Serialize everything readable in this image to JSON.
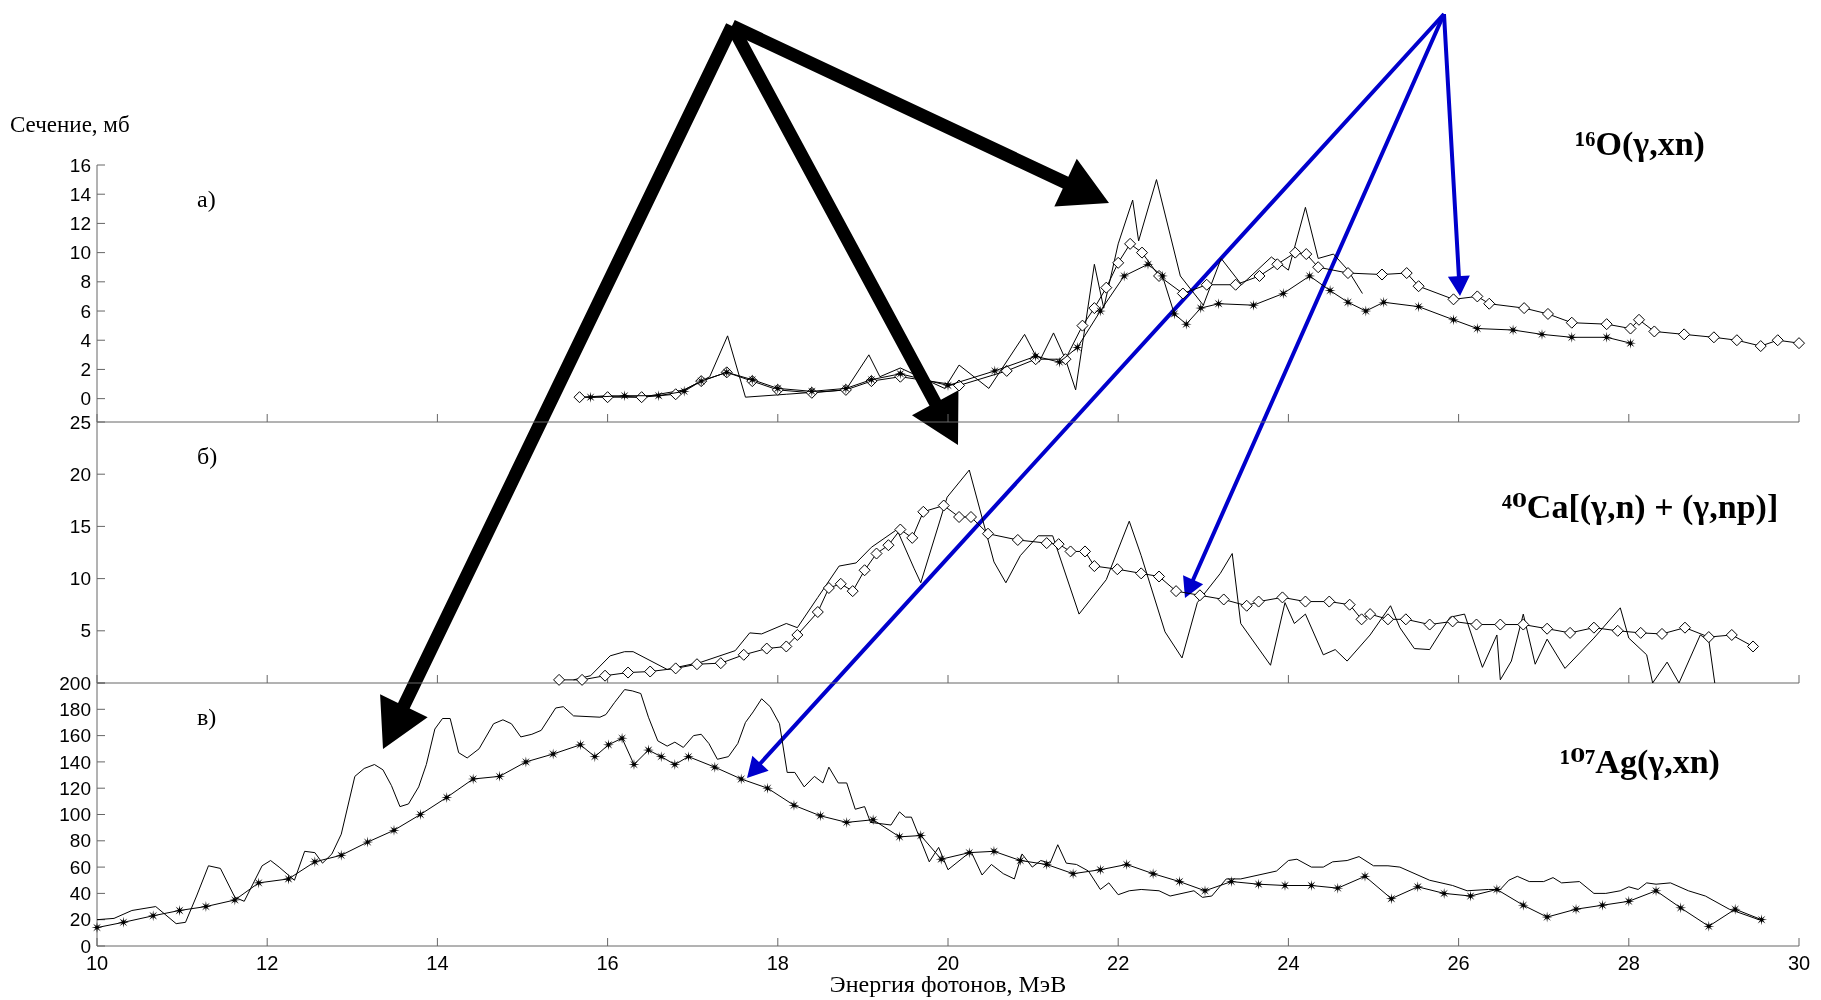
{
  "chart_data": [
    {
      "type": "line",
      "title": "¹⁶O(γ,xn)",
      "ylabel": "Сечение, мб",
      "annotations": [
        "а)"
      ],
      "xlim": [
        10,
        30
      ],
      "xticks": [
        10,
        12,
        14,
        16,
        18,
        20,
        22,
        24,
        26,
        28,
        30
      ],
      "ylim": [
        -1.6,
        16
      ],
      "yticks": [
        0,
        2,
        4,
        6,
        8,
        10,
        12,
        14,
        16
      ],
      "tick_labels": "y",
      "line_style": "solid",
      "series": [
        {
          "color": "#000000",
          "marker": "none",
          "x": [
            15.7,
            16.0,
            16.4,
            16.9,
            17.2,
            17.41,
            17.62,
            18.1,
            18.8,
            19.07,
            19.2,
            19.44,
            19.96,
            20.13,
            20.48,
            20.9,
            21.07,
            21.24,
            21.38,
            21.5,
            21.72,
            21.83,
            22.0,
            22.17,
            22.24,
            22.45,
            22.73,
            23.0,
            23.21,
            23.45,
            23.8,
            24.0,
            24.2,
            24.35,
            24.53,
            24.7,
            24.87
          ],
          "values": [
            0.1,
            0.2,
            0.1,
            0.6,
            1.5,
            4.3,
            0.1,
            0.3,
            0.6,
            3.0,
            1.5,
            2.1,
            0.7,
            2.3,
            0.7,
            4.4,
            2.5,
            4.5,
            2.7,
            0.6,
            9.2,
            6.2,
            10.6,
            13.6,
            10.8,
            15.0,
            8.4,
            6.4,
            9.6,
            7.8,
            9.7,
            8.8,
            13.1,
            9.6,
            9.9,
            8.8,
            7.2
          ]
        },
        {
          "color": "#000000",
          "marker": "diamond",
          "x": [
            15.67,
            16.0,
            16.4,
            16.8,
            17.1,
            17.4,
            17.7,
            18.0,
            18.4,
            18.8,
            19.1,
            19.44,
            20.13,
            20.69,
            21.03,
            21.38,
            21.58,
            21.72,
            21.86,
            22.0,
            22.14,
            22.28,
            22.48,
            22.76,
            23.04,
            23.38,
            23.66,
            23.87,
            24.08,
            24.21,
            24.35,
            24.7,
            25.1,
            25.39,
            25.53,
            25.94,
            26.22,
            26.36,
            26.77,
            27.05,
            27.33,
            27.74,
            28.02,
            28.12,
            28.3,
            28.65,
            29.0,
            29.27,
            29.55,
            29.75,
            30.0
          ],
          "values": [
            0.1,
            0.1,
            0.1,
            0.3,
            1.2,
            1.8,
            1.2,
            0.6,
            0.4,
            0.6,
            1.2,
            1.5,
            0.9,
            1.9,
            2.7,
            2.7,
            5.0,
            6.2,
            7.6,
            9.3,
            10.6,
            10.0,
            8.4,
            7.2,
            7.8,
            7.8,
            8.4,
            9.2,
            10.0,
            9.9,
            9.0,
            8.6,
            8.5,
            8.6,
            7.7,
            6.8,
            7.0,
            6.5,
            6.2,
            5.8,
            5.2,
            5.1,
            4.8,
            5.4,
            4.6,
            4.4,
            4.2,
            4.0,
            3.6,
            4.0,
            3.8
          ]
        },
        {
          "color": "#000000",
          "marker": "star",
          "x": [
            15.8,
            16.2,
            16.6,
            16.9,
            17.1,
            17.4,
            17.7,
            18.0,
            18.4,
            18.8,
            19.1,
            19.44,
            20.0,
            20.55,
            21.03,
            21.31,
            21.52,
            21.79,
            22.07,
            22.35,
            22.52,
            22.66,
            22.8,
            22.97,
            23.18,
            23.59,
            23.94,
            24.25,
            24.49,
            24.7,
            24.91,
            25.12,
            25.53,
            25.94,
            26.22,
            26.64,
            26.98,
            27.33,
            27.74,
            28.02
          ],
          "values": [
            0.1,
            0.2,
            0.2,
            0.5,
            1.2,
            1.8,
            1.3,
            0.7,
            0.5,
            0.7,
            1.3,
            1.7,
            0.9,
            1.9,
            2.9,
            2.5,
            3.5,
            6.0,
            8.4,
            9.2,
            8.4,
            5.8,
            5.1,
            6.2,
            6.5,
            6.4,
            7.2,
            8.4,
            7.4,
            6.6,
            6.0,
            6.6,
            6.3,
            5.4,
            4.8,
            4.7,
            4.4,
            4.2,
            4.2,
            3.8
          ]
        }
      ]
    },
    {
      "type": "line",
      "title": "⁴⁰Ca[(γ,n) + (γ,np)]",
      "annotations": [
        "б)"
      ],
      "xlim": [
        10,
        30
      ],
      "xticks": [
        10,
        12,
        14,
        16,
        18,
        20,
        22,
        24,
        26,
        28,
        30
      ],
      "ylim": [
        0,
        25
      ],
      "yticks": [
        {
          "value": 0,
          "label": null
        },
        5,
        10,
        15,
        20,
        25
      ],
      "tick_labels": "y",
      "line_style": "solid",
      "series": [
        {
          "color": "#000000",
          "marker": "none",
          "x": [
            15.6,
            15.8,
            16.03,
            16.2,
            16.3,
            16.7,
            17.1,
            17.5,
            17.67,
            17.81,
            18.1,
            18.23,
            18.47,
            18.72,
            18.92,
            19.1,
            19.4,
            19.6,
            19.68,
            19.99,
            20.25,
            20.54,
            20.68,
            20.85,
            21.06,
            21.23,
            21.54,
            21.86,
            22.13,
            22.27,
            22.55,
            22.75,
            22.93,
            23.2,
            23.34,
            23.44,
            23.79,
            23.96,
            24.07,
            24.2,
            24.41,
            24.55,
            24.69,
            24.96,
            25.2,
            25.31,
            25.48,
            25.66,
            25.9,
            26.07,
            26.28,
            26.45,
            26.49,
            26.62,
            26.76,
            26.9,
            27.04,
            27.25,
            27.59,
            27.9,
            28.0,
            28.21,
            28.28,
            28.45,
            28.59,
            28.84,
            28.94,
            29.01
          ],
          "values": [
            0.3,
            0.7,
            2.6,
            3.0,
            3.0,
            1.3,
            2.0,
            3.1,
            4.8,
            4.7,
            5.7,
            5.3,
            8.2,
            11.2,
            11.5,
            13.0,
            14.7,
            11.0,
            9.6,
            17.8,
            20.4,
            11.6,
            9.6,
            12.2,
            14.1,
            14.1,
            6.6,
            9.9,
            15.5,
            12.2,
            4.9,
            2.4,
            7.7,
            10.5,
            12.4,
            5.7,
            1.7,
            7.7,
            5.7,
            6.6,
            2.7,
            3.2,
            2.1,
            4.6,
            7.4,
            5.3,
            3.3,
            3.2,
            6.3,
            6.6,
            1.5,
            4.6,
            0.3,
            2.1,
            6.6,
            1.8,
            4.2,
            1.4,
            4.3,
            7.2,
            4.3,
            2.7,
            0,
            2.0,
            0,
            4.6,
            4.1,
            0
          ]
        },
        {
          "color": "#000000",
          "marker": "diamond",
          "x": [
            15.43,
            15.7,
            15.97,
            16.24,
            16.5,
            16.8,
            17.05,
            17.33,
            17.6,
            17.87,
            18.1,
            18.23,
            18.47,
            18.6,
            18.74,
            18.88,
            19.02,
            19.16,
            19.3,
            19.44,
            19.58,
            19.71,
            19.95,
            20.13,
            20.27,
            20.47,
            20.82,
            21.16,
            21.3,
            21.44,
            21.61,
            21.72,
            21.99,
            22.27,
            22.48,
            22.68,
            22.96,
            23.24,
            23.51,
            23.65,
            23.93,
            24.2,
            24.48,
            24.72,
            24.86,
            24.96,
            25.17,
            25.38,
            25.66,
            25.93,
            26.21,
            26.49,
            26.76,
            27.04,
            27.31,
            27.59,
            27.87,
            28.14,
            28.39,
            28.66,
            28.94,
            29.21,
            29.46
          ],
          "values": [
            0.3,
            0.3,
            0.7,
            1.0,
            1.1,
            1.4,
            1.8,
            1.9,
            2.7,
            3.3,
            3.5,
            4.6,
            6.8,
            9.1,
            9.5,
            8.8,
            10.8,
            12.4,
            13.2,
            14.7,
            13.9,
            16.4,
            17.0,
            15.9,
            15.9,
            14.3,
            13.7,
            13.4,
            13.3,
            12.6,
            12.6,
            11.2,
            10.9,
            10.5,
            10.2,
            8.8,
            8.4,
            8.0,
            7.4,
            7.8,
            8.2,
            7.8,
            7.8,
            7.5,
            6.1,
            6.6,
            6.1,
            6.1,
            5.6,
            5.9,
            5.6,
            5.6,
            5.6,
            5.2,
            4.8,
            5.3,
            5.0,
            4.8,
            4.7,
            5.3,
            4.4,
            4.6,
            3.5
          ]
        }
      ]
    },
    {
      "type": "line",
      "title": "¹⁰⁷Ag(γ,xn)",
      "xlabel": "Энергия фотонов, МэВ",
      "annotations": [
        "в)"
      ],
      "xlim": [
        10,
        30
      ],
      "xticks": [
        10,
        12,
        14,
        16,
        18,
        20,
        22,
        24,
        26,
        28,
        30
      ],
      "ylim": [
        0,
        200
      ],
      "yticks": [
        0,
        20,
        40,
        60,
        80,
        100,
        120,
        140,
        160,
        180,
        200
      ],
      "line_style": "solid",
      "series": [
        {
          "color": "#000000",
          "marker": "none",
          "x": [
            10,
            10.2,
            10.41,
            10.69,
            10.93,
            11.04,
            11.17,
            11.31,
            11.45,
            11.62,
            11.73,
            11.94,
            12.04,
            12.14,
            12.32,
            12.44,
            12.56,
            12.65,
            12.76,
            12.87,
            13.03,
            13.14,
            13.26,
            13.36,
            13.46,
            13.56,
            13.66,
            13.78,
            13.87,
            13.97,
            14.06,
            14.15,
            14.25,
            14.35,
            14.49,
            14.66,
            14.77,
            14.87,
            14.98,
            15.11,
            15.22,
            15.39,
            15.48,
            15.6,
            15.91,
            15.98,
            16.08,
            16.2,
            16.29,
            16.39,
            16.48,
            16.59,
            16.7,
            16.79,
            16.89,
            17.01,
            17.1,
            17.19,
            17.29,
            17.42,
            17.53,
            17.62,
            17.71,
            17.81,
            17.91,
            18.02,
            18.11,
            18.2,
            18.31,
            18.43,
            18.53,
            18.6,
            18.71,
            18.81,
            18.91,
            19.02,
            19.09,
            19.33,
            19.43,
            19.5,
            19.57,
            19.78,
            19.89,
            20.0,
            20.27,
            20.4,
            20.51,
            20.65,
            20.78,
            20.87,
            20.99,
            21.09,
            21.2,
            21.29,
            21.39,
            21.51,
            21.65,
            21.79,
            21.89,
            22.0,
            22.13,
            22.27,
            22.48,
            22.61,
            22.89,
            22.99,
            23.1,
            23.27,
            23.44,
            23.86,
            24.0,
            24.1,
            24.27,
            24.41,
            24.52,
            24.69,
            24.83,
            25.0,
            25.17,
            25.31,
            25.66,
            25.93,
            26.1,
            26.35,
            26.49,
            26.59,
            26.69,
            26.83,
            27.0,
            27.11,
            27.21,
            27.42,
            27.59,
            27.73,
            27.9,
            28.0,
            28.11,
            28.21,
            28.32,
            28.49,
            28.7,
            28.9,
            29.18,
            29.53
          ],
          "values": [
            20,
            21,
            27,
            30,
            17,
            18,
            38,
            61,
            59,
            37,
            34,
            61,
            65,
            60,
            50,
            72,
            71,
            63,
            70,
            85,
            129,
            135,
            138,
            134,
            122,
            106,
            108,
            121,
            138,
            165,
            173,
            173,
            147,
            143,
            150,
            169,
            172,
            169,
            159,
            161,
            164,
            181,
            182,
            175,
            174,
            176,
            185,
            195,
            194,
            192,
            174,
            156,
            152,
            155,
            151,
            160,
            161,
            154,
            142,
            144,
            154,
            170,
            178,
            188,
            182,
            169,
            132,
            132,
            121,
            129,
            124,
            136,
            124,
            124,
            104,
            106,
            94,
            92,
            102,
            98,
            98,
            64,
            75,
            58,
            72,
            54,
            62,
            55,
            51,
            70,
            60,
            65,
            63,
            77,
            63,
            62,
            57,
            43,
            48,
            39,
            42,
            43,
            42,
            38,
            42,
            37,
            38,
            51,
            51,
            57,
            65,
            66,
            60,
            60,
            64,
            65,
            68,
            61,
            61,
            60,
            50,
            46,
            42,
            43,
            43,
            50,
            53,
            49,
            49,
            52,
            48,
            49,
            40,
            40,
            42,
            45,
            43,
            48,
            47,
            48,
            42,
            38,
            28,
            20
          ]
        },
        {
          "color": "#000000",
          "marker": "star",
          "x": [
            10,
            10.31,
            10.66,
            10.97,
            11.28,
            11.62,
            11.9,
            12.25,
            12.56,
            12.87,
            13.18,
            13.49,
            13.8,
            14.11,
            14.42,
            14.73,
            15.04,
            15.36,
            15.68,
            15.85,
            16.01,
            16.17,
            16.31,
            16.48,
            16.63,
            16.79,
            16.95,
            17.26,
            17.57,
            17.88,
            18.19,
            18.5,
            18.81,
            19.12,
            19.43,
            19.68,
            19.92,
            20.25,
            20.54,
            20.85,
            21.16,
            21.47,
            21.79,
            22.1,
            22.41,
            22.72,
            23.02,
            23.33,
            23.65,
            23.96,
            24.27,
            24.58,
            24.9,
            25.21,
            25.52,
            25.83,
            26.14,
            26.45,
            26.76,
            27.04,
            27.38,
            27.69,
            28.0,
            28.32,
            28.61,
            28.94,
            29.25,
            29.56
          ],
          "values": [
            14,
            18,
            23,
            27,
            30,
            35,
            48,
            51,
            64,
            69,
            79,
            88,
            100,
            113,
            127,
            129,
            140,
            146,
            153,
            144,
            153,
            158,
            138,
            149,
            144,
            138,
            144,
            136,
            127,
            120,
            107,
            99,
            94,
            96,
            83,
            84,
            66,
            71,
            72,
            65,
            62,
            55,
            58,
            62,
            55,
            49,
            42,
            49,
            47,
            46,
            46,
            44,
            53,
            36,
            45,
            40,
            38,
            43,
            31,
            22,
            28,
            31,
            34,
            42,
            29,
            15,
            28,
            20
          ]
        }
      ]
    }
  ]
}
